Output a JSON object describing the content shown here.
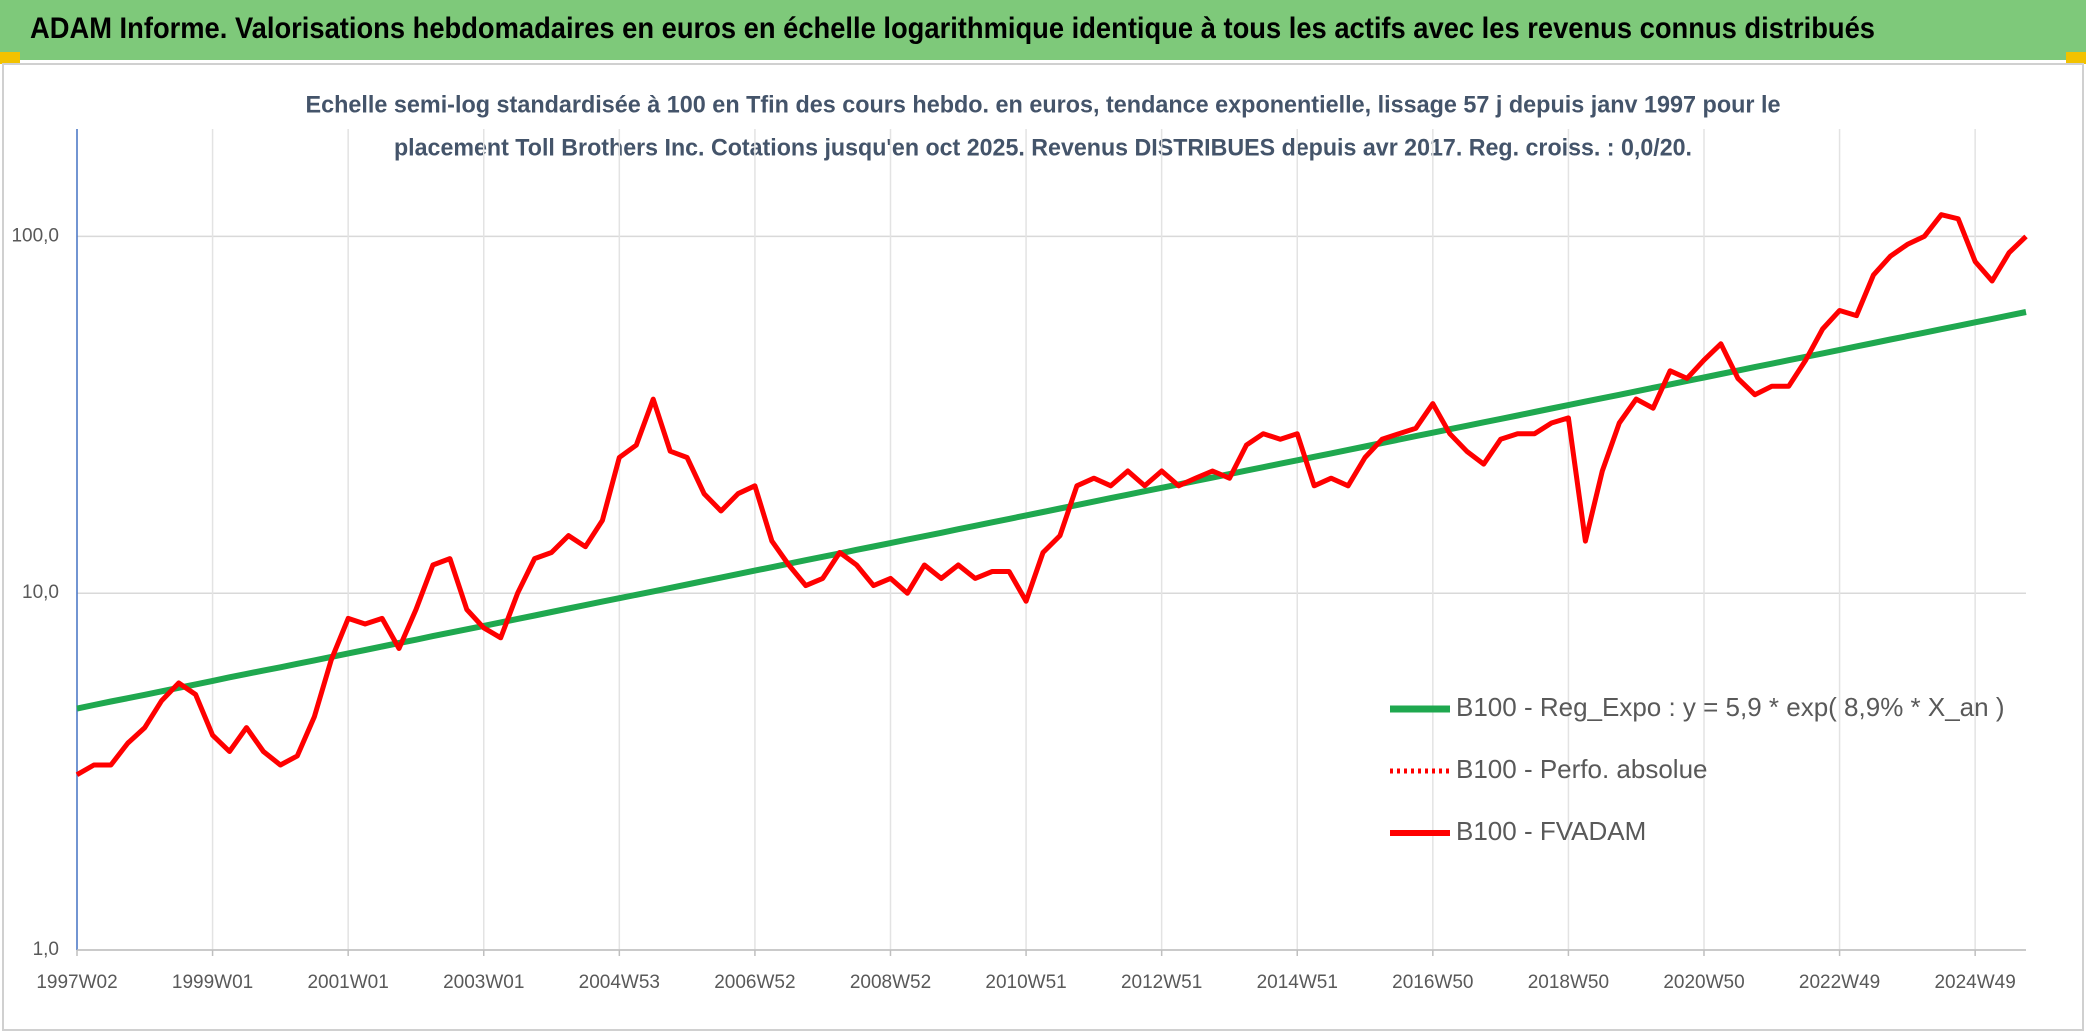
{
  "chart_data": {
    "type": "line",
    "title": "ADAM Informe. Valorisations hebdomadaires en euros en échelle logarithmique identique à tous les actifs avec les revenus connus distribués",
    "subtitle": [
      "Echelle semi-log standardisée à 100 en Tfin des cours hebdo. en euros, tendance exponentielle, lissage 57 j depuis janv 1997 pour le",
      "placement Toll Brothers Inc. Cotations jusqu'en oct 2025. Revenus DISTRIBUES depuis avr 2017. Reg. croiss. : 0,0/20."
    ],
    "log_scale": true,
    "grid": true,
    "legend": "right",
    "ylim": [
      1,
      200
    ],
    "yticks": [
      {
        "value": 1,
        "label": "1,0"
      },
      {
        "value": 10,
        "label": "10,0"
      },
      {
        "value": 100,
        "label": "100,0"
      }
    ],
    "categories": [
      "1997W02",
      null,
      null,
      null,
      null,
      null,
      null,
      null,
      "1999W01",
      null,
      null,
      null,
      null,
      null,
      null,
      null,
      "2001W01",
      null,
      null,
      null,
      null,
      null,
      null,
      null,
      "2003W01",
      null,
      null,
      null,
      null,
      null,
      null,
      null,
      "2004W53",
      null,
      null,
      null,
      null,
      null,
      null,
      null,
      "2006W52",
      null,
      null,
      null,
      null,
      null,
      null,
      null,
      "2008W52",
      null,
      null,
      null,
      null,
      null,
      null,
      null,
      "2010W51",
      null,
      null,
      null,
      null,
      null,
      null,
      null,
      "2012W51",
      null,
      null,
      null,
      null,
      null,
      null,
      null,
      "2014W51",
      null,
      null,
      null,
      null,
      null,
      null,
      null,
      "2016W50",
      null,
      null,
      null,
      null,
      null,
      null,
      null,
      "2018W50",
      null,
      null,
      null,
      null,
      null,
      null,
      null,
      "2020W50",
      null,
      null,
      null,
      null,
      null,
      null,
      null,
      "2022W49",
      null,
      null,
      null,
      null,
      null,
      null,
      null,
      "2024W49",
      null,
      null,
      null
    ],
    "series": [
      {
        "name": "B100 - Reg_Expo : y = 5,9 * exp( 8,9% *  X_an )",
        "color": "#1fa84f",
        "width": 6,
        "dash": null,
        "values": [
          4.75,
          4.86,
          4.97,
          5.08,
          5.19,
          5.31,
          5.43,
          5.55,
          5.68,
          5.81,
          5.94,
          6.07,
          6.2,
          6.34,
          6.48,
          6.63,
          6.78,
          6.93,
          7.09,
          7.25,
          7.41,
          7.58,
          7.75,
          7.92,
          8.1,
          8.28,
          8.47,
          8.66,
          8.86,
          9.06,
          9.26,
          9.47,
          9.68,
          9.9,
          10.12,
          10.35,
          10.58,
          10.82,
          11.06,
          11.31,
          11.57,
          11.83,
          12.1,
          12.37,
          12.65,
          12.93,
          13.23,
          13.52,
          13.82,
          14.13,
          14.45,
          14.77,
          15.11,
          15.45,
          15.8,
          16.15,
          16.52,
          16.89,
          17.27,
          17.66,
          18.06,
          18.47,
          18.88,
          19.31,
          19.74,
          20.18,
          20.64,
          21.1,
          21.57,
          22.06,
          22.55,
          23.06,
          23.58,
          24.11,
          24.65,
          25.21,
          25.78,
          26.36,
          26.95,
          27.56,
          28.18,
          28.81,
          29.46,
          30.12,
          30.8,
          31.49,
          32.2,
          32.93,
          33.67,
          34.43,
          35.2,
          35.99,
          36.81,
          37.64,
          38.48,
          39.35,
          40.23,
          41.14,
          42.06,
          43.01,
          43.98,
          44.97,
          45.98,
          47.01,
          48.08,
          49.16,
          50.27,
          51.4,
          52.55,
          53.73,
          54.94,
          56.18,
          57.45,
          58.74,
          60.06,
          61.41
        ]
      },
      {
        "name": "B100 - Perfo. absolue",
        "color": "#ff0000",
        "width": 4,
        "dash": "3 4",
        "values": [
          3.1,
          3.3,
          3.3,
          3.8,
          4.2,
          5.0,
          5.6,
          5.2,
          4.0,
          3.6,
          4.2,
          3.6,
          3.3,
          3.5,
          4.5,
          6.5,
          8.5,
          8.2,
          8.5,
          7.0,
          9.0,
          12.0,
          12.5,
          9.0,
          8.0,
          7.5,
          10.0,
          12.5,
          13.0,
          14.5,
          13.5,
          16.0,
          24,
          26,
          35,
          25,
          24,
          19,
          17,
          19,
          20,
          14,
          12,
          10.5,
          11,
          13,
          12,
          10.5,
          11,
          10,
          12,
          11,
          12,
          11,
          11.5,
          11.5,
          9.5,
          13,
          14.5,
          20,
          21,
          20,
          22,
          20,
          22,
          20,
          21,
          22,
          21,
          26,
          28,
          27,
          28,
          20,
          21,
          20,
          24,
          27,
          28,
          29,
          34,
          28,
          25,
          23,
          27,
          28,
          28,
          30,
          31,
          14,
          22,
          30,
          35,
          33,
          42,
          40,
          45,
          50,
          40,
          36,
          38,
          38,
          45,
          55,
          62,
          60,
          78,
          88,
          95,
          100,
          115,
          112,
          85,
          75,
          90,
          100
        ]
      },
      {
        "name": "B100 - FVADAM",
        "color": "#ff0000",
        "width": 5,
        "dash": null,
        "values": [
          3.1,
          3.3,
          3.3,
          3.8,
          4.2,
          5.0,
          5.6,
          5.2,
          4.0,
          3.6,
          4.2,
          3.6,
          3.3,
          3.5,
          4.5,
          6.5,
          8.5,
          8.2,
          8.5,
          7.0,
          9.0,
          12.0,
          12.5,
          9.0,
          8.0,
          7.5,
          10.0,
          12.5,
          13.0,
          14.5,
          13.5,
          16.0,
          24,
          26,
          35,
          25,
          24,
          19,
          17,
          19,
          20,
          14,
          12,
          10.5,
          11,
          13,
          12,
          10.5,
          11,
          10,
          12,
          11,
          12,
          11,
          11.5,
          11.5,
          9.5,
          13,
          14.5,
          20,
          21,
          20,
          22,
          20,
          22,
          20,
          21,
          22,
          21,
          26,
          28,
          27,
          28,
          20,
          21,
          20,
          24,
          27,
          28,
          29,
          34,
          28,
          25,
          23,
          27,
          28,
          28,
          30,
          31,
          14,
          22,
          30,
          35,
          33,
          42,
          40,
          45,
          50,
          40,
          36,
          38,
          38,
          45,
          55,
          62,
          60,
          78,
          88,
          95,
          100,
          115,
          112,
          85,
          75,
          90,
          100
        ]
      }
    ]
  }
}
